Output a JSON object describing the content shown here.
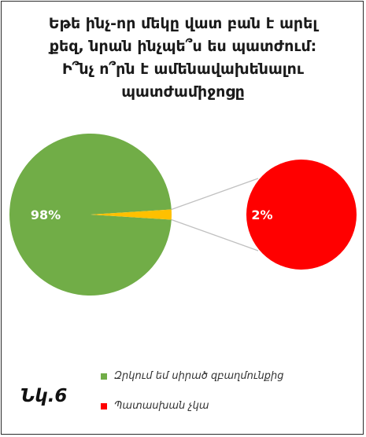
{
  "chart_data": {
    "type": "pie",
    "title_lines": [
      "Եթե ինչ-որ մեկը վատ բան է արել",
      "քեզ, նրան ինչպե՞ս ես պատժում:",
      "Ի՞նչ ո՞րն է ամենավախենալու",
      "պատժամիջոցը"
    ],
    "slices": [
      {
        "label": "Զրկում եմ սիրած զբաղմունքից",
        "value": 98,
        "data_label": "98%",
        "color": "#71ad47"
      },
      {
        "label": "Պատասխան չկա",
        "value": 2,
        "data_label": "2%",
        "color": "#ffc000"
      }
    ],
    "detail_pie": {
      "value": 2,
      "data_label": "2%",
      "color": "#ff0000"
    },
    "legend": [
      {
        "label": "Զրկում եմ սիրած զբաղմունքից",
        "color": "#71ad47"
      },
      {
        "label": "Պատասխան չկա",
        "color": "#ff0000"
      }
    ],
    "legend_position": "bottom"
  },
  "figure_label": "Նկ.6"
}
